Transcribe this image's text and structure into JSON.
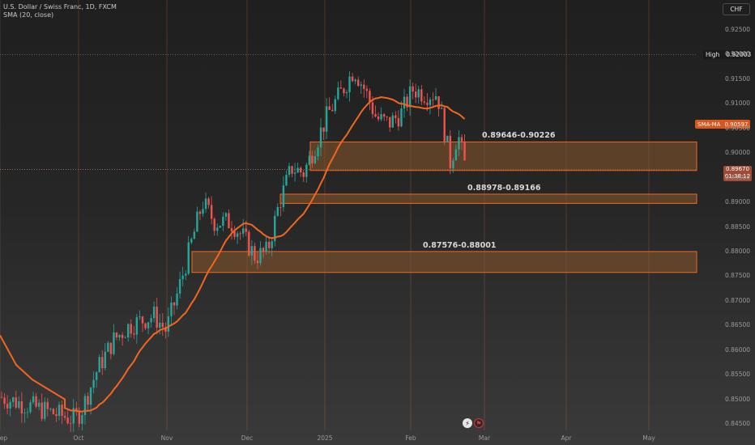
{
  "legend": {
    "title": "U.S. Dollar / Swiss Franc, 1D, FXCM",
    "indicator": "SMA (20, close)"
  },
  "currency_button": "CHF",
  "high_marker": {
    "label": "High",
    "value": "0.92003"
  },
  "sma_tag": {
    "label": "SMA-MA",
    "value": "0.90597"
  },
  "price_tag": {
    "price": "0.89670",
    "countdown": "01:38:12"
  },
  "zones": [
    {
      "label": "0.89646-0.90226"
    },
    {
      "label": "0.88978-0.89166"
    },
    {
      "label": "0.87576-0.88001"
    }
  ],
  "icons": [
    "lightning-icon",
    "flag-icon"
  ],
  "colors": {
    "up": "#26a69a",
    "down": "#ef5350",
    "sma": "#f2661f",
    "zone_fill": "#8a5a2c",
    "zone_border": "#f2661f"
  },
  "chart_data": {
    "type": "candlestick",
    "title": "U.S. Dollar / Swiss Franc, 1D, FXCM",
    "ylim": [
      0.8445,
      0.9275
    ],
    "y_ticks": [
      "0.92500",
      "0.92000",
      "0.91500",
      "0.91000",
      "0.90500",
      "0.90000",
      "0.89500",
      "0.89000",
      "0.88500",
      "0.88000",
      "0.87500",
      "0.87000",
      "0.86500",
      "0.86000",
      "0.85500",
      "0.85000",
      "0.84500"
    ],
    "x_ticks": [
      "Sep",
      "Oct",
      "Nov",
      "Dec",
      "2025",
      "Feb",
      "Mar",
      "Apr",
      "May"
    ],
    "zones": [
      {
        "low": 0.89646,
        "high": 0.90226
      },
      {
        "low": 0.88978,
        "high": 0.89166
      },
      {
        "low": 0.87576,
        "high": 0.88001
      }
    ],
    "high": 0.92003,
    "last_price": 0.8967,
    "sma_last": 0.90597
  }
}
